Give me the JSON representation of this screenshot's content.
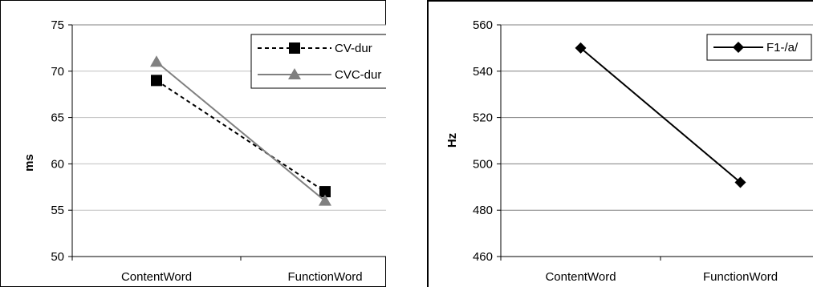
{
  "chart_data": [
    {
      "type": "line",
      "categories": [
        "ContentWord",
        "FunctionWord"
      ],
      "ylabel": "ms",
      "xlabel": "",
      "title": "",
      "ylim": [
        50,
        75
      ],
      "yticks": [
        50,
        55,
        60,
        65,
        70,
        75
      ],
      "grid": true,
      "legend_position": "top-right",
      "series": [
        {
          "name": "CV-dur",
          "values": [
            69,
            57
          ],
          "color": "#000000",
          "line_style": "dashed",
          "marker": "square"
        },
        {
          "name": "CVC-dur",
          "values": [
            71,
            56
          ],
          "color": "#808080",
          "line_style": "solid",
          "marker": "triangle"
        }
      ]
    },
    {
      "type": "line",
      "categories": [
        "ContentWord",
        "FunctionWord"
      ],
      "ylabel": "Hz",
      "xlabel": "",
      "title": "",
      "ylim": [
        460,
        560
      ],
      "yticks": [
        460,
        480,
        500,
        520,
        540,
        560
      ],
      "grid": true,
      "legend_position": "top-right",
      "series": [
        {
          "name": "F1-/a/",
          "values": [
            550,
            492
          ],
          "color": "#000000",
          "line_style": "solid",
          "marker": "diamond"
        }
      ]
    }
  ]
}
